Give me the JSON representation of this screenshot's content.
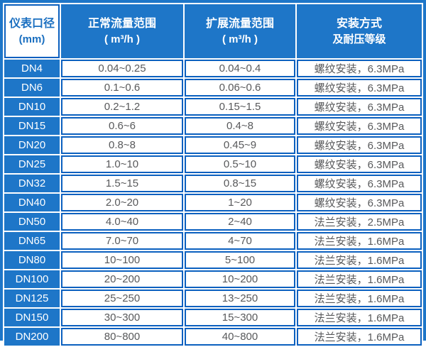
{
  "colors": {
    "blue_fill": "#1e76c8",
    "blue_border": "#0b60bf",
    "header_text": "#ffffff",
    "diameter_header_text": "#1a6fc0",
    "data_text": "#58595b"
  },
  "chart_data": {
    "type": "table",
    "columns": [
      {
        "key": "diameter",
        "label_line1": "仪表口径",
        "label_line2": "(mm)"
      },
      {
        "key": "normal_flow_range",
        "label_line1": "正常流量范围",
        "label_line2": "( m³/h )"
      },
      {
        "key": "extended_flow_range",
        "label_line1": "扩展流量范围",
        "label_line2": "( m³/h )"
      },
      {
        "key": "installation_pressure",
        "label_line1": "安装方式",
        "label_line2": "及耐压等级"
      }
    ],
    "rows": [
      {
        "diameter": "DN4",
        "normal_flow_range": "0.04~0.25",
        "extended_flow_range": "0.04~0.4",
        "installation_pressure": "螺纹安装，6.3MPa"
      },
      {
        "diameter": "DN6",
        "normal_flow_range": "0.1~0.6",
        "extended_flow_range": "0.06~0.6",
        "installation_pressure": "螺纹安装，6.3MPa"
      },
      {
        "diameter": "DN10",
        "normal_flow_range": "0.2~1.2",
        "extended_flow_range": "0.15~1.5",
        "installation_pressure": "螺纹安装，6.3MPa"
      },
      {
        "diameter": "DN15",
        "normal_flow_range": "0.6~6",
        "extended_flow_range": "0.4~8",
        "installation_pressure": "螺纹安装，6.3MPa"
      },
      {
        "diameter": "DN20",
        "normal_flow_range": "0.8~8",
        "extended_flow_range": "0.45~9",
        "installation_pressure": "螺纹安装，6.3MPa"
      },
      {
        "diameter": "DN25",
        "normal_flow_range": "1.0~10",
        "extended_flow_range": "0.5~10",
        "installation_pressure": "螺纹安装，6.3MPa"
      },
      {
        "diameter": "DN32",
        "normal_flow_range": "1.5~15",
        "extended_flow_range": "0.8~15",
        "installation_pressure": "螺纹安装，6.3MPa"
      },
      {
        "diameter": "DN40",
        "normal_flow_range": "2.0~20",
        "extended_flow_range": "1~20",
        "installation_pressure": "螺纹安装，6.3MPa"
      },
      {
        "diameter": "DN50",
        "normal_flow_range": "4.0~40",
        "extended_flow_range": "2~40",
        "installation_pressure": "法兰安装，2.5MPa"
      },
      {
        "diameter": "DN65",
        "normal_flow_range": "7.0~70",
        "extended_flow_range": "4~70",
        "installation_pressure": "法兰安装，1.6MPa"
      },
      {
        "diameter": "DN80",
        "normal_flow_range": "10~100",
        "extended_flow_range": "5~100",
        "installation_pressure": "法兰安装，1.6MPa"
      },
      {
        "diameter": "DN100",
        "normal_flow_range": "20~200",
        "extended_flow_range": "10~200",
        "installation_pressure": "法兰安装，1.6MPa"
      },
      {
        "diameter": "DN125",
        "normal_flow_range": "25~250",
        "extended_flow_range": "13~250",
        "installation_pressure": "法兰安装，1.6MPa"
      },
      {
        "diameter": "DN150",
        "normal_flow_range": "30~300",
        "extended_flow_range": "15~300",
        "installation_pressure": "法兰安装，1.6MPa"
      },
      {
        "diameter": "DN200",
        "normal_flow_range": "80~800",
        "extended_flow_range": "40~800",
        "installation_pressure": "法兰安装，1.6MPa"
      }
    ]
  }
}
